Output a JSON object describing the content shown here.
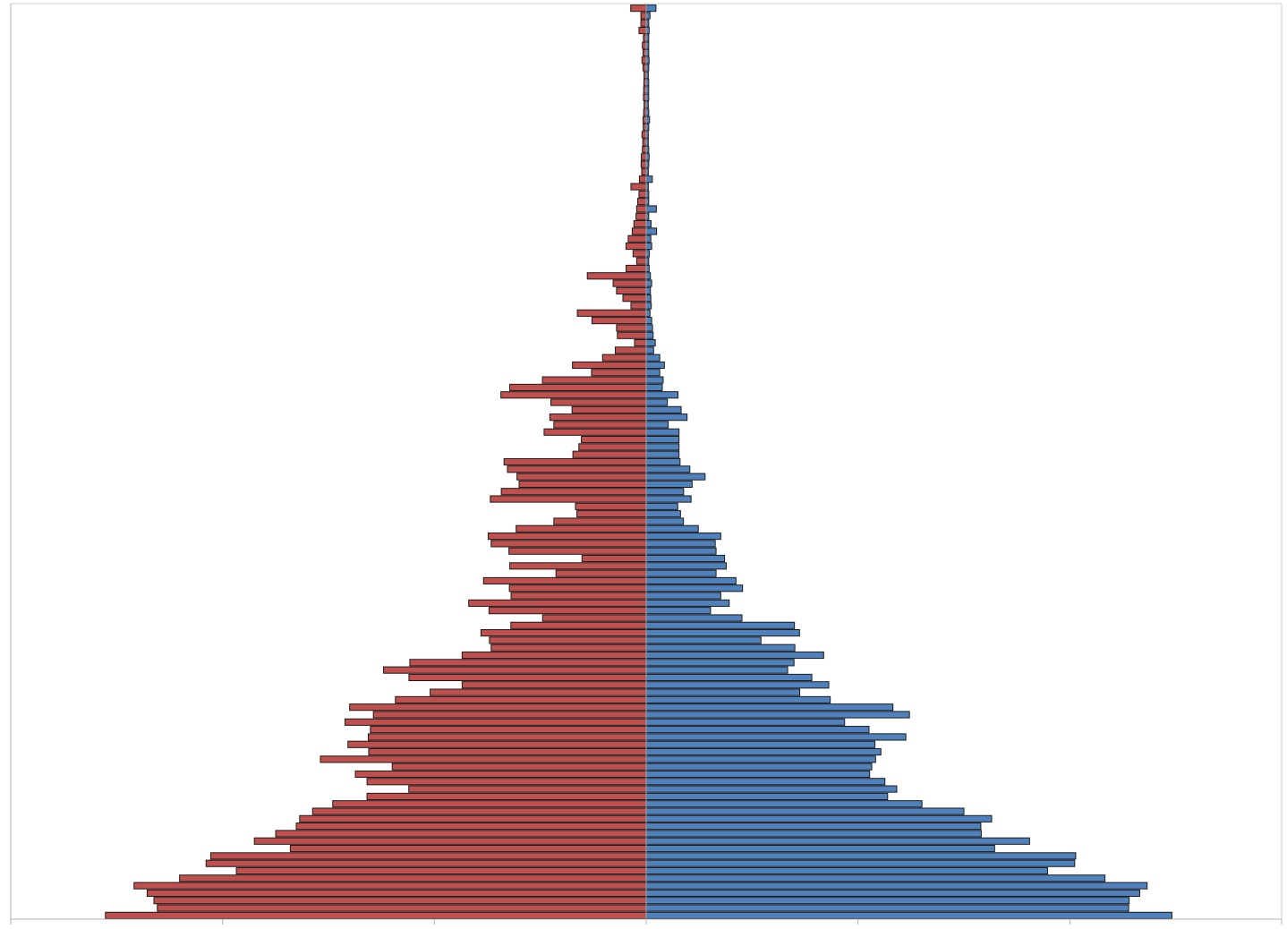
{
  "chart_data": {
    "type": "bar",
    "orientation": "horizontal",
    "layout": "population-pyramid",
    "title": "",
    "xlabel": "",
    "ylabel": "",
    "xlim": [
      -300,
      300
    ],
    "x_ticks": [
      -300,
      -200,
      -100,
      0,
      100,
      200,
      300
    ],
    "grid": false,
    "legend": "none",
    "bar_order": "bottom-to-top",
    "series": [
      {
        "side": "left",
        "color": "#c0504d",
        "values": [
          255.3,
          230.8,
          232.4,
          235.6,
          241.8,
          220.3,
          193.5,
          207.8,
          205.6,
          168.0,
          185.0,
          174.9,
          165.2,
          163.6,
          157.5,
          148.0,
          131.8,
          112.1,
          131.8,
          137.3,
          119.9,
          153.8,
          131.0,
          140.8,
          131.2,
          130.2,
          142.2,
          128.8,
          140.0,
          118.4,
          102.0,
          86.9,
          112.0,
          124.0,
          111.6,
          86.9,
          73.2,
          74.0,
          78.0,
          63.9,
          48.9,
          74.2,
          83.8,
          63.8,
          64.6,
          76.8,
          42.6,
          64.4,
          30.3,
          64.8,
          73.2,
          74.6,
          61.4,
          43.6,
          32.7,
          33.4,
          73.6,
          68.4,
          60.0,
          61.0,
          65.5,
          67.1,
          34.6,
          31.8,
          30.6,
          48.2,
          43.6,
          45.5,
          35.0,
          45.0,
          68.6,
          64.4,
          49.0,
          25.8,
          34.8,
          20.6,
          14.6,
          5.5,
          13.6,
          14.0,
          25.6,
          32.5,
          7.2,
          11.0,
          14.0,
          15.6,
          27.8,
          9.5,
          4.5,
          6.2,
          9.5,
          8.5,
          6.6,
          5.8,
          4.8,
          4.5,
          4.0,
          3.4,
          7.2,
          3.2,
          2.1,
          2.4,
          2.3,
          1.8,
          1.6,
          2.0,
          1.4,
          1.5,
          1.2,
          1.0,
          1.3,
          1.2,
          1.1,
          1.0,
          1.5,
          2.0,
          1.5,
          1.8,
          1.3,
          3.4,
          2.5,
          2.5,
          7.3
        ]
      },
      {
        "side": "right",
        "color": "#4f81bd",
        "values": [
          248.2,
          227.8,
          228.0,
          233.0,
          236.5,
          216.6,
          189.5,
          202.3,
          202.8,
          164.5,
          181.0,
          158.2,
          158.0,
          163.1,
          150.0,
          130.2,
          114.0,
          118.3,
          112.7,
          105.5,
          106.5,
          108.3,
          110.8,
          108.0,
          122.6,
          105.2,
          93.7,
          124.3,
          116.5,
          86.9,
          72.5,
          86.2,
          78.2,
          66.8,
          69.8,
          83.8,
          70.2,
          54.2,
          72.4,
          70.0,
          45.2,
          30.4,
          39.2,
          35.2,
          45.5,
          42.4,
          33.0,
          37.8,
          37.0,
          33.0,
          32.6,
          35.2,
          24.6,
          17.6,
          16.2,
          14.9,
          21.2,
          17.7,
          21.7,
          27.8,
          20.6,
          16.0,
          15.5,
          15.5,
          15.5,
          15.5,
          10.4,
          19.3,
          16.5,
          10.0,
          15.0,
          7.6,
          8.0,
          6.4,
          8.6,
          6.4,
          3.5,
          4.3,
          3.3,
          3.0,
          2.6,
          1.8,
          2.4,
          2.2,
          2.0,
          2.6,
          2.0,
          1.4,
          1.2,
          1.5,
          2.6,
          2.2,
          4.9,
          2.3,
          1.2,
          4.8,
          1.2,
          1.2,
          1.0,
          2.9,
          1.0,
          1.2,
          1.4,
          1.2,
          1.0,
          1.0,
          1.2,
          1.6,
          1.2,
          1.0,
          1.2,
          1.2,
          1.2,
          1.0,
          1.2,
          1.4,
          1.2,
          1.2,
          1.2,
          1.4,
          1.2,
          1.8,
          4.6
        ]
      }
    ]
  }
}
